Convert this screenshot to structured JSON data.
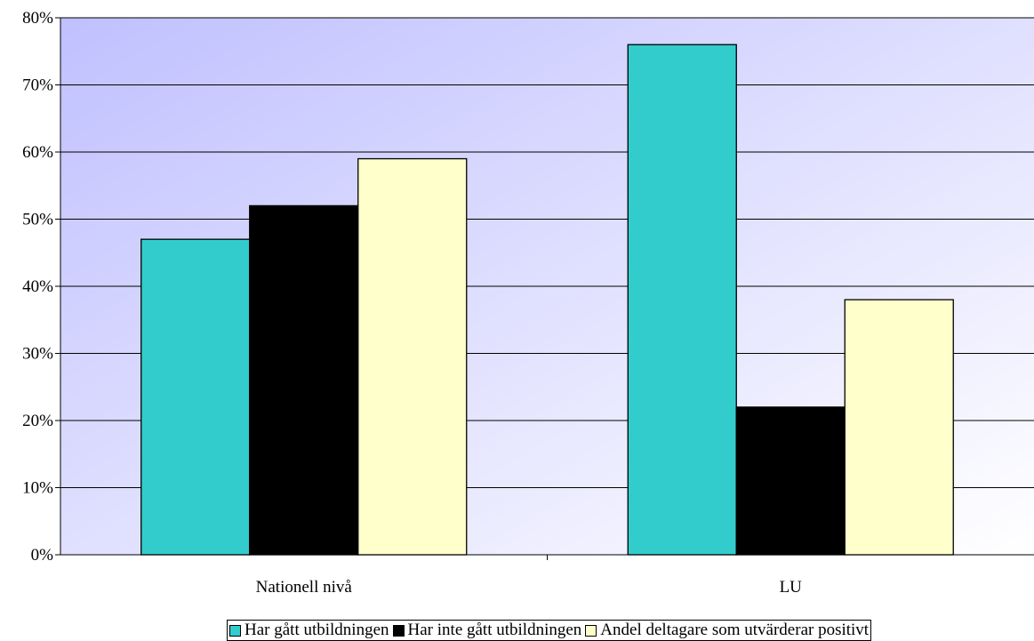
{
  "chart_data": {
    "type": "bar",
    "categories": [
      "Nationell nivå",
      "LU"
    ],
    "series": [
      {
        "name": "Har gått utbildningen",
        "values": [
          47,
          76
        ],
        "color": "#33CCCC"
      },
      {
        "name": "Har inte gått utbildningen",
        "values": [
          52,
          22
        ],
        "color": "#000000"
      },
      {
        "name": "Andel deltagare som utvärderar positivt",
        "values": [
          59,
          38
        ],
        "color": "#FFFFCC"
      }
    ],
    "ylim": [
      0,
      80
    ],
    "yticks": [
      "0%",
      "10%",
      "20%",
      "30%",
      "40%",
      "50%",
      "60%",
      "70%",
      "80%"
    ],
    "grid": true,
    "legend_position": "bottom",
    "plot_background": [
      "#C0C0FF",
      "#FFFFFF"
    ]
  }
}
